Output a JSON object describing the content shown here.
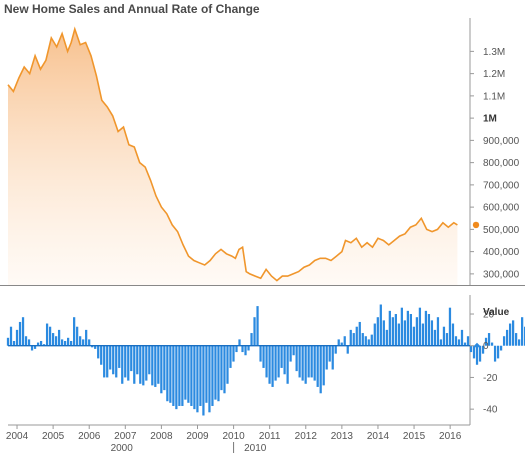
{
  "chart_data": [
    {
      "type": "area",
      "title": "New Home Sales and Annual Rate of Change",
      "series": [
        {
          "name": "",
          "color": "#f0962c",
          "x": [
            2003.75,
            2003.9,
            2004.05,
            2004.2,
            2004.35,
            2004.5,
            2004.65,
            2004.8,
            2004.95,
            2005.1,
            2005.25,
            2005.4,
            2005.5,
            2005.6,
            2005.75,
            2005.9,
            2006.05,
            2006.2,
            2006.35,
            2006.5,
            2006.65,
            2006.8,
            2006.95,
            2007.1,
            2007.25,
            2007.4,
            2007.55,
            2007.7,
            2007.85,
            2008.0,
            2008.15,
            2008.3,
            2008.45,
            2008.6,
            2008.75,
            2008.9,
            2009.05,
            2009.2,
            2009.35,
            2009.5,
            2009.65,
            2009.8,
            2009.95,
            2010.05,
            2010.15,
            2010.25,
            2010.35,
            2010.45,
            2010.6,
            2010.75,
            2010.9,
            2011.05,
            2011.2,
            2011.35,
            2011.5,
            2011.65,
            2011.8,
            2011.95,
            2012.1,
            2012.25,
            2012.4,
            2012.55,
            2012.7,
            2012.85,
            2013.0,
            2013.1,
            2013.25,
            2013.4,
            2013.55,
            2013.7,
            2013.85,
            2014.0,
            2014.15,
            2014.3,
            2014.45,
            2014.6,
            2014.75,
            2014.9,
            2015.05,
            2015.2,
            2015.35,
            2015.5,
            2015.65,
            2015.8,
            2015.95,
            2016.1,
            2016.2
          ],
          "values": [
            1150000,
            1120000,
            1180000,
            1230000,
            1200000,
            1280000,
            1220000,
            1260000,
            1360000,
            1320000,
            1380000,
            1300000,
            1340000,
            1400000,
            1330000,
            1340000,
            1280000,
            1190000,
            1080000,
            1050000,
            1010000,
            940000,
            960000,
            880000,
            870000,
            800000,
            780000,
            720000,
            650000,
            600000,
            570000,
            520000,
            490000,
            430000,
            380000,
            360000,
            350000,
            340000,
            360000,
            390000,
            410000,
            390000,
            380000,
            370000,
            410000,
            420000,
            310000,
            300000,
            290000,
            280000,
            320000,
            290000,
            270000,
            290000,
            290000,
            300000,
            310000,
            330000,
            340000,
            360000,
            370000,
            370000,
            360000,
            380000,
            400000,
            450000,
            440000,
            460000,
            420000,
            440000,
            420000,
            460000,
            450000,
            430000,
            450000,
            470000,
            480000,
            510000,
            520000,
            550000,
            500000,
            490000,
            500000,
            530000,
            510000,
            530000,
            520000
          ]
        }
      ],
      "ylim": [
        250000,
        1450000
      ],
      "yticks": [
        "300,000",
        "400,000",
        "500,000",
        "600,000",
        "700,000",
        "800,000",
        "900,000",
        "1M",
        "1.1M",
        "1.2M",
        "1.3M"
      ],
      "marker_color": "#f08a1c"
    },
    {
      "type": "bar",
      "ylabel": "Value",
      "color": "#2b8ae0",
      "yticks": [
        "20",
        "0",
        "-20",
        "-40"
      ],
      "ylim": [
        -50,
        32
      ],
      "marker_color": "#2b8ae0",
      "x_start": 2003.75,
      "x_step": 0.0833,
      "values": [
        5,
        12,
        3,
        10,
        15,
        18,
        6,
        4,
        -3,
        -2,
        2,
        3,
        1,
        14,
        12,
        8,
        6,
        10,
        4,
        3,
        5,
        3,
        18,
        12,
        6,
        4,
        10,
        4,
        -1,
        -2,
        -8,
        -12,
        -20,
        -20,
        -15,
        -18,
        -20,
        -14,
        -24,
        -20,
        -22,
        -16,
        -24,
        -18,
        -24,
        -25,
        -22,
        -18,
        -25,
        -26,
        -24,
        -30,
        -28,
        -35,
        -36,
        -38,
        -40,
        -38,
        -38,
        -34,
        -36,
        -38,
        -40,
        -42,
        -38,
        -44,
        -36,
        -42,
        -38,
        -34,
        -35,
        -28,
        -30,
        -24,
        -14,
        -10,
        -4,
        4,
        -4,
        -6,
        -3,
        8,
        18,
        25,
        -10,
        -14,
        -20,
        -24,
        -26,
        -22,
        -20,
        -14,
        -18,
        -24,
        -10,
        -6,
        -16,
        -20,
        -22,
        -24,
        -20,
        -20,
        -22,
        -26,
        -30,
        -25,
        -15,
        -10,
        -15,
        -5,
        4,
        2,
        6,
        -5,
        10,
        8,
        12,
        15,
        8,
        6,
        4,
        7,
        14,
        18,
        26,
        16,
        10,
        22,
        18,
        20,
        14,
        24,
        16,
        22,
        20,
        12,
        18,
        24,
        14,
        22,
        20,
        16,
        10,
        18,
        4,
        12,
        8,
        24,
        14,
        6,
        4,
        10,
        2,
        6,
        -4,
        -8,
        -12,
        -10,
        -5,
        5,
        8,
        2,
        -10,
        -8,
        -3,
        6,
        10,
        14,
        16,
        8,
        4,
        18,
        12,
        4,
        12,
        20,
        26,
        20,
        12,
        24,
        18,
        6,
        20,
        22,
        24,
        14,
        16,
        8,
        10,
        10,
        14,
        6,
        10,
        2,
        12,
        -4,
        6
      ]
    }
  ],
  "xaxis": {
    "years": [
      "2004",
      "2005",
      "2006",
      "2007",
      "2008",
      "2009",
      "2010",
      "2011",
      "2012",
      "2013",
      "2014",
      "2015",
      "2016"
    ],
    "decades": [
      "2000",
      "2010"
    ]
  },
  "chart_title": "New Home Sales and Annual Rate of Change"
}
